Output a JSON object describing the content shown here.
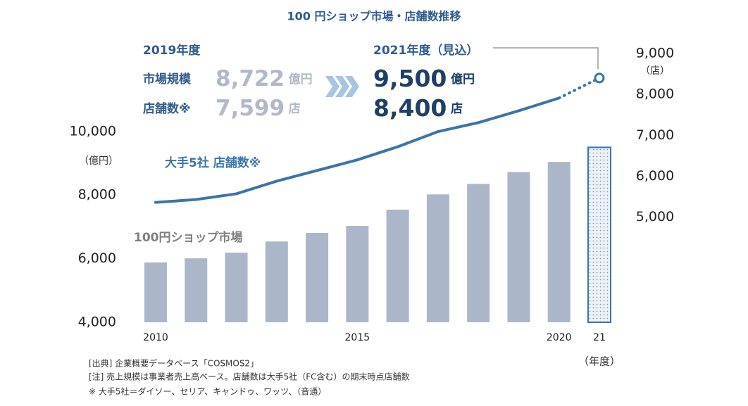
{
  "chart_data": {
    "type": "bar",
    "title": "100 円ショップ市場・店舗数推移",
    "categories": [
      "2010",
      null,
      null,
      null,
      null,
      "2015",
      null,
      null,
      null,
      null,
      "2020",
      "21"
    ],
    "x_unit": "（年度）",
    "y_unit": "（億円）",
    "y2_unit": "（店）",
    "ylim": [
      4000,
      12450
    ],
    "yticks": [
      {
        "value": 4000,
        "label": "4,000"
      },
      {
        "value": 6000,
        "label": "6,000"
      },
      {
        "value": 8000,
        "label": "8,000"
      },
      {
        "value": 10000,
        "label": "10,000"
      }
    ],
    "y2lim": [
      2430,
      9000
    ],
    "y2ticks": [
      {
        "value": 5000,
        "label": "5,000"
      },
      {
        "value": 6000,
        "label": "6,000"
      },
      {
        "value": 7000,
        "label": "7,000"
      },
      {
        "value": 8000,
        "label": "8,000"
      },
      {
        "value": 9000,
        "label": "9,000"
      }
    ],
    "series": [
      {
        "name": "100円ショップ市場",
        "type": "bar",
        "color": "#abb6c9",
        "forecast_color": "#3b74ab",
        "values": [
          5880,
          6010,
          6190,
          6540,
          6810,
          7030,
          7540,
          8020,
          8350,
          8722,
          9040,
          9500
        ]
      },
      {
        "name": "大手5社 店舗数※",
        "type": "line",
        "axis": "y2",
        "color": "#3b74ab",
        "values": [
          5360,
          5430,
          5570,
          5880,
          6140,
          6400,
          6720,
          7090,
          7310,
          7599,
          7910,
          8400
        ]
      }
    ],
    "summary": [
      {
        "heading": "2019年度",
        "rows": [
          {
            "label": "市場規模",
            "value": {
              "value": 8722,
              "label": "8,722"
            },
            "unit": "億円"
          },
          {
            "label": "店舗数※",
            "value": {
              "value": 7599,
              "label": "7,599"
            },
            "unit": "店"
          }
        ]
      },
      {
        "heading": "2021年度（見込）",
        "rows": [
          {
            "value": {
              "value": 9500,
              "label": "9,500"
            },
            "unit": "億円"
          },
          {
            "value": {
              "value": 8400,
              "label": "8,400"
            },
            "unit": "店"
          }
        ]
      }
    ],
    "notes": [
      "[出典] 企業概要データベース「COSMOS2」",
      "[注] 売上規模は事業者売上高ベース。店舗数は大手5社（FC含む）の期末時点店舗数",
      "※ 大手5社＝ダイソー、セリア、キャンドゥ、ワッツ、（音通）"
    ]
  }
}
